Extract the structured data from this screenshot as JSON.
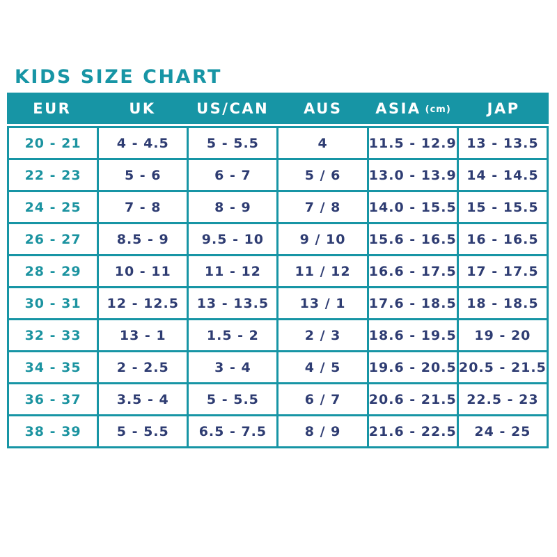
{
  "title": "KIDS SIZE CHART",
  "colors": {
    "teal_accent": "#1795a5",
    "navy_text": "#2e3c72",
    "eur_text": "#1b93a0",
    "header_text": "#ffffff",
    "background": "#ffffff"
  },
  "chart_data": {
    "type": "table",
    "title": "KIDS SIZE CHART",
    "legend_position": "none",
    "grid": true,
    "columns": [
      {
        "label": "EUR"
      },
      {
        "label": "UK"
      },
      {
        "label": "US/CAN"
      },
      {
        "label": "AUS"
      },
      {
        "label": "ASIA",
        "unit": "(cm)"
      },
      {
        "label": "JAP"
      }
    ],
    "rows": [
      [
        "20 - 21",
        "4 - 4.5",
        "5 - 5.5",
        "4",
        "11.5 - 12.9",
        "13 - 13.5"
      ],
      [
        "22 - 23",
        "5 - 6",
        "6 - 7",
        "5 / 6",
        "13.0 - 13.9",
        "14 - 14.5"
      ],
      [
        "24 - 25",
        "7 - 8",
        "8 - 9",
        "7 / 8",
        "14.0 - 15.5",
        "15 - 15.5"
      ],
      [
        "26 - 27",
        "8.5 - 9",
        "9.5 - 10",
        "9 / 10",
        "15.6 - 16.5",
        "16 - 16.5"
      ],
      [
        "28 - 29",
        "10 - 11",
        "11 - 12",
        "11 / 12",
        "16.6 - 17.5",
        "17 - 17.5"
      ],
      [
        "30 - 31",
        "12 - 12.5",
        "13 - 13.5",
        "13 / 1",
        "17.6 - 18.5",
        "18 - 18.5"
      ],
      [
        "32 - 33",
        "13 - 1",
        "1.5 - 2",
        "2 / 3",
        "18.6 - 19.5",
        "19 - 20"
      ],
      [
        "34 - 35",
        "2 - 2.5",
        "3 - 4",
        "4 / 5",
        "19.6 - 20.5",
        "20.5 - 21.5"
      ],
      [
        "36 - 37",
        "3.5 - 4",
        "5 - 5.5",
        "6 / 7",
        "20.6 - 21.5",
        "22.5 - 23"
      ],
      [
        "38 - 39",
        "5 - 5.5",
        "6.5 - 7.5",
        "8 / 9",
        "21.6 - 22.5",
        "24 - 25"
      ]
    ]
  }
}
